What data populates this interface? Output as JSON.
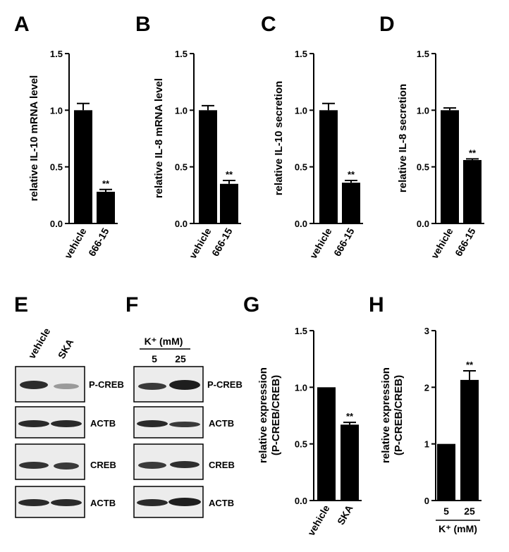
{
  "figure": {
    "panel_letters": [
      "A",
      "B",
      "C",
      "D",
      "E",
      "F",
      "G",
      "H"
    ]
  },
  "chart_data": [
    {
      "panel": "A",
      "type": "bar",
      "categories": [
        "vehicle",
        "666-15"
      ],
      "values": [
        1.0,
        0.28
      ],
      "errors": [
        0.06,
        0.02
      ],
      "significance": [
        "",
        "**"
      ],
      "ylabel": "relative IL-10 mRNA level",
      "ylim": [
        0,
        1.5
      ],
      "yticks": [
        "0.0",
        "0.5",
        "1.0",
        "1.5"
      ],
      "colors": {
        "bar": "#000000"
      }
    },
    {
      "panel": "B",
      "type": "bar",
      "categories": [
        "vehicle",
        "666-15"
      ],
      "values": [
        1.0,
        0.35
      ],
      "errors": [
        0.04,
        0.03
      ],
      "significance": [
        "",
        "**"
      ],
      "ylabel": "relative IL-8 mRNA level",
      "ylim": [
        0,
        1.5
      ],
      "yticks": [
        "0.0",
        "0.5",
        "1.0",
        "1.5"
      ],
      "colors": {
        "bar": "#000000"
      }
    },
    {
      "panel": "C",
      "type": "bar",
      "categories": [
        "vehicle",
        "666-15"
      ],
      "values": [
        1.0,
        0.36
      ],
      "errors": [
        0.06,
        0.02
      ],
      "significance": [
        "",
        "**"
      ],
      "ylabel": "relative IL-10 secretion",
      "ylim": [
        0,
        1.5
      ],
      "yticks": [
        "0.0",
        "0.5",
        "1.0",
        "1.5"
      ],
      "colors": {
        "bar": "#000000"
      }
    },
    {
      "panel": "D",
      "type": "bar",
      "categories": [
        "vehicle",
        "666-15"
      ],
      "values": [
        1.0,
        0.56
      ],
      "errors": [
        0.02,
        0.01
      ],
      "significance": [
        "",
        "**"
      ],
      "ylabel": "relative IL-8 secretion",
      "ylim": [
        0,
        1.5
      ],
      "yticks": [
        "0.0",
        "0.5",
        "1.0",
        "1.5"
      ],
      "colors": {
        "bar": "#000000"
      }
    },
    {
      "panel": "G",
      "type": "bar",
      "categories": [
        "vehicle",
        "SKA"
      ],
      "values": [
        1.0,
        0.67
      ],
      "errors": [
        0.0,
        0.02
      ],
      "significance": [
        "",
        "**"
      ],
      "ylabel": "relative expression",
      "ylabel2": "(P-CREB/CREB)",
      "ylim": [
        0,
        1.5
      ],
      "yticks": [
        "0.0",
        "0.5",
        "1.0",
        "1.5"
      ],
      "colors": {
        "bar": "#000000"
      }
    },
    {
      "panel": "H",
      "type": "bar",
      "categories": [
        "5",
        "25"
      ],
      "values": [
        1.0,
        2.13
      ],
      "errors": [
        0.0,
        0.16
      ],
      "significance": [
        "",
        "**"
      ],
      "ylabel": "relative expression",
      "ylabel2": "(P-CREB/CREB)",
      "xlabel": "K⁺ (mM)",
      "ylim": [
        0,
        3
      ],
      "yticks": [
        "0",
        "1",
        "2",
        "3"
      ],
      "colors": {
        "bar": "#000000"
      }
    }
  ],
  "blots": {
    "E": {
      "lanes": [
        "vehicle",
        "SKA"
      ],
      "bands": [
        "P-CREB",
        "ACTB",
        "CREB",
        "ACTB"
      ]
    },
    "F": {
      "header": "K⁺ (mM)",
      "lanes": [
        "5",
        "25"
      ],
      "bands": [
        "P-CREB",
        "ACTB",
        "CREB",
        "ACTB"
      ]
    }
  }
}
